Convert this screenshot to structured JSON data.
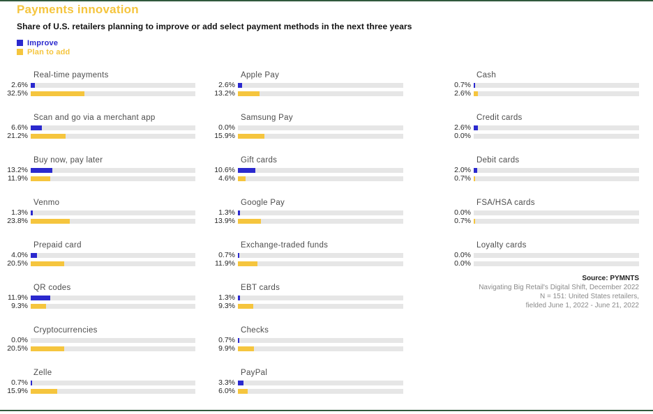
{
  "page": {
    "title": "Payments innovation",
    "subtitle": "Share of U.S. retailers planning to improve or add select payment methods in the next three years"
  },
  "legend": [
    {
      "label": "Improve",
      "color": "#2b29ce"
    },
    {
      "label": "Plan to add",
      "color": "#f5c53e"
    }
  ],
  "colors": {
    "accent_yellow": "#f5c53e",
    "improve_blue": "#2b29ce",
    "bar_track_gray": "#e6e6e6",
    "border_green": "#30593c"
  },
  "chart_data": {
    "type": "bar",
    "title": "Payments innovation",
    "subtitle": "Share of U.S. retailers planning to improve or add select payment methods in the next three years",
    "series_names": [
      "Improve",
      "Plan to add"
    ],
    "unit": "%",
    "xlim": [
      0,
      100
    ],
    "layout": "3-column grid of horizontal paired bars, value labels left of each bar, gray full-width tracks",
    "columns": [
      [
        {
          "name": "Real-time payments",
          "improve": 2.6,
          "plan_to_add": 32.5
        },
        {
          "name": "Scan and go via a merchant app",
          "improve": 6.6,
          "plan_to_add": 21.2
        },
        {
          "name": "Buy now, pay later",
          "improve": 13.2,
          "plan_to_add": 11.9
        },
        {
          "name": "Venmo",
          "improve": 1.3,
          "plan_to_add": 23.8
        },
        {
          "name": "Prepaid card",
          "improve": 4.0,
          "plan_to_add": 20.5
        },
        {
          "name": "QR codes",
          "improve": 11.9,
          "plan_to_add": 9.3
        },
        {
          "name": "Cryptocurrencies",
          "improve": 0.0,
          "plan_to_add": 20.5
        },
        {
          "name": "Zelle",
          "improve": 0.7,
          "plan_to_add": 15.9
        }
      ],
      [
        {
          "name": "Apple Pay",
          "improve": 2.6,
          "plan_to_add": 13.2
        },
        {
          "name": "Samsung Pay",
          "improve": 0.0,
          "plan_to_add": 15.9
        },
        {
          "name": "Gift cards",
          "improve": 10.6,
          "plan_to_add": 4.6
        },
        {
          "name": "Google Pay",
          "improve": 1.3,
          "plan_to_add": 13.9
        },
        {
          "name": "Exchange-traded funds",
          "improve": 0.7,
          "plan_to_add": 11.9
        },
        {
          "name": "EBT cards",
          "improve": 1.3,
          "plan_to_add": 9.3
        },
        {
          "name": "Checks",
          "improve": 0.7,
          "plan_to_add": 9.9
        },
        {
          "name": "PayPal",
          "improve": 3.3,
          "plan_to_add": 6.0
        }
      ],
      [
        {
          "name": "Cash",
          "improve": 0.7,
          "plan_to_add": 2.6
        },
        {
          "name": "Credit cards",
          "improve": 2.6,
          "plan_to_add": 0.0
        },
        {
          "name": "Debit cards",
          "improve": 2.0,
          "plan_to_add": 0.7
        },
        {
          "name": "FSA/HSA cards",
          "improve": 0.0,
          "plan_to_add": 0.7
        },
        {
          "name": "Loyalty cards",
          "improve": 0.0,
          "plan_to_add": 0.0
        }
      ]
    ]
  },
  "source": {
    "bold_line": "Source: PYMNTS",
    "lines": [
      "Navigating Big Retail's Digital Shift, December 2022",
      "N = 151: United States retailers,",
      "fielded June 1, 2022 - June 21, 2022"
    ]
  }
}
